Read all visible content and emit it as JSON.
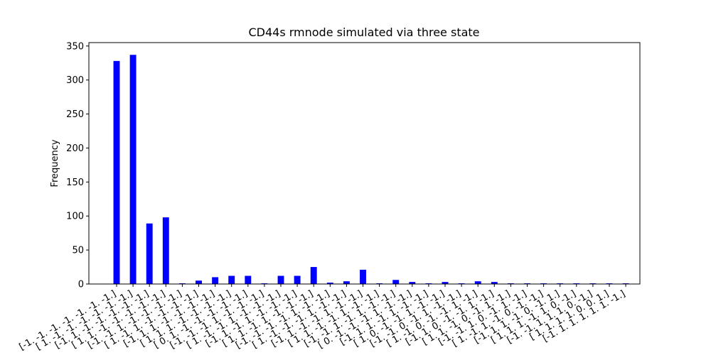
{
  "chart_data": {
    "type": "bar",
    "title": "CD44s rmnode simulated via three state",
    "xlabel": "",
    "ylabel": "Frequency",
    "ylim": [
      0,
      355
    ],
    "yticks": [
      0,
      50,
      100,
      150,
      200,
      250,
      300,
      350
    ],
    "grid": false,
    "legend": "none",
    "bar_color": "#0000ff",
    "categories": [
      "[-1. -1. -1. -1. -1. -1. -1.]",
      "[ 1. -1. -1. -1. -1. -1. -1.]",
      "[-1. 1. -1. -1. -1. -1. -1.]",
      "[ 1. 1. -1. -1. -1. -1. -1.]",
      "[-1. -1. 1. -1. -1. -1. -1.]",
      "[ 1. -1. 1. -1. -1. -1. -1.]",
      "[-1. 1. 1. -1. -1. -1. -1.]",
      "[ 1. 1. 1. -1. -1. -1. -1.]",
      "[ 0. 1. -1. -1. -1. -1. -1.]",
      "[-1. -1. -1. 1. -1. -1. -1.]",
      "[ 1. -1. -1. 1. -1. -1. -1.]",
      "[-1. 1. -1. 1. -1. -1. -1.]",
      "[ 1. 1. -1. 1. -1. -1. -1.]",
      "[-1. -1. -1. -1. 1. -1. -1.]",
      "[ 1. -1. -1. -1. 1. -1. -1.]",
      "[-1. 1. -1. -1. 1. -1. -1.]",
      "[ 1. 1. -1. -1. 1. -1. -1.]",
      "[-1. -1. 1. -1. 1. -1. -1.]",
      "[ 0. -1. -1. -1. 1. -1. -1.]",
      "[-1. 1. 1. -1. 1. -1. -1.]",
      "[ 1. 0. -1. -1. 1. -1. -1.]",
      "[-1. -1. 0. -1. 1. -1. -1.]",
      "[ 1. -1. 0. -1. -1. 1. -1.]",
      "[-1. 1. 0. -1. -1. 1. -1.]",
      "[ 1. 1. -1. 0. -1. 1. -1.]",
      "[-1. -1. 1. 0. -1. 1. -1.]",
      "[ 1. -1. 1. -1. 0. -1. -1.]",
      "[-1. 1. 1. -1. 0. -1. 1.]",
      "[ 1. 1. 1. -1. 1. 0. -1.]",
      "[-1. -1. 1. 1. 1. 0. -1.]",
      "[ 1. 1. 1. 1. 0. 0. 1.]",
      "[-1. 1. 1. 1. 1. 1. -1.]"
    ],
    "values": [
      328,
      337,
      89,
      98,
      1,
      5,
      10,
      12,
      12,
      1,
      12,
      12,
      25,
      2,
      4,
      21,
      1,
      6,
      3,
      1,
      3,
      1,
      4,
      3,
      1,
      1,
      1,
      1,
      1,
      1,
      1,
      1
    ]
  }
}
